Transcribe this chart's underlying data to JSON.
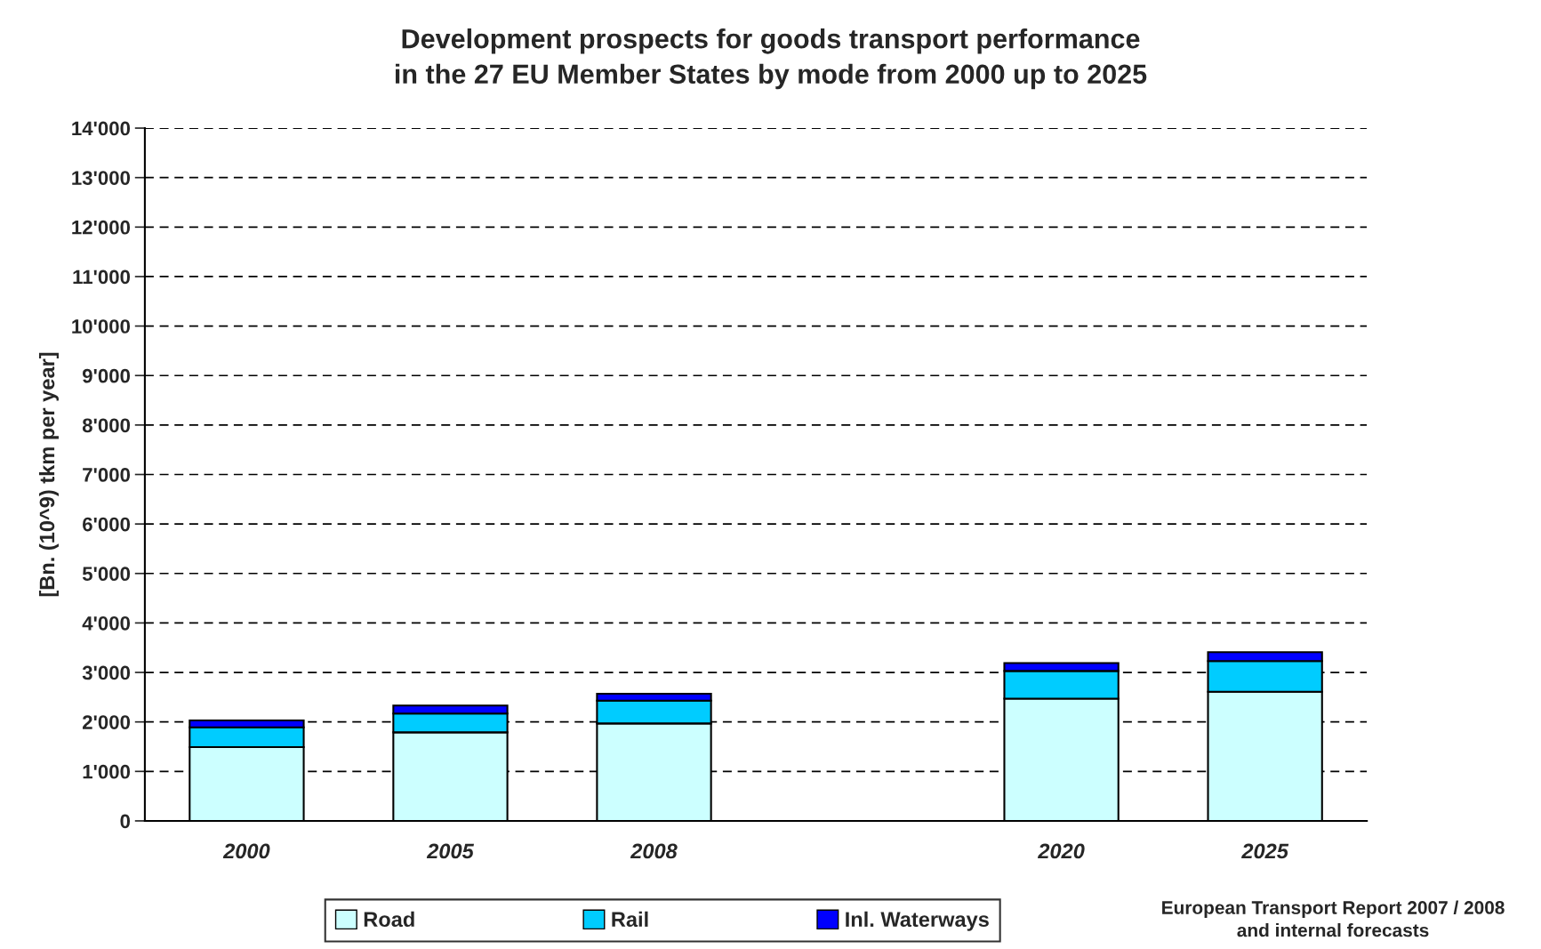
{
  "chart_data": {
    "type": "bar",
    "title": "Development prospects for goods transport performance\nin the 27 EU Member States by mode from 2000 up to 2025",
    "ylabel": "[Bn. (10^9) tkm per year]",
    "categories": [
      "2000",
      "2005",
      "2008",
      null,
      "2020",
      "2025"
    ],
    "stacked": true,
    "series": [
      {
        "name": "Road",
        "color": "#ccffff",
        "values": [
          1490,
          1790,
          1970,
          null,
          2470,
          2610
        ]
      },
      {
        "name": "Rail",
        "color": "#00ccff",
        "values": [
          400,
          380,
          460,
          null,
          560,
          620
        ]
      },
      {
        "name": "Inl. Waterways",
        "color": "#0000ff",
        "values": [
          140,
          160,
          140,
          null,
          160,
          180
        ]
      }
    ],
    "ylim": [
      0,
      14000
    ],
    "yticks": [
      {
        "value": 0,
        "label": "0"
      },
      {
        "value": 1000,
        "label": "1'000"
      },
      {
        "value": 2000,
        "label": "2'000"
      },
      {
        "value": 3000,
        "label": "3'000"
      },
      {
        "value": 4000,
        "label": "4'000"
      },
      {
        "value": 5000,
        "label": "5'000"
      },
      {
        "value": 6000,
        "label": "6'000"
      },
      {
        "value": 7000,
        "label": "7'000"
      },
      {
        "value": 8000,
        "label": "8'000"
      },
      {
        "value": 9000,
        "label": "9'000"
      },
      {
        "value": 10000,
        "label": "10'000"
      },
      {
        "value": 11000,
        "label": "11'000"
      },
      {
        "value": 12000,
        "label": "12'000"
      },
      {
        "value": 13000,
        "label": "13'000"
      },
      {
        "value": 14000,
        "label": "14'000"
      }
    ],
    "grid": "y",
    "legend": "bottom",
    "annotations": [
      "European Transport Report 2007 / 2008\nand internal forecasts"
    ]
  }
}
